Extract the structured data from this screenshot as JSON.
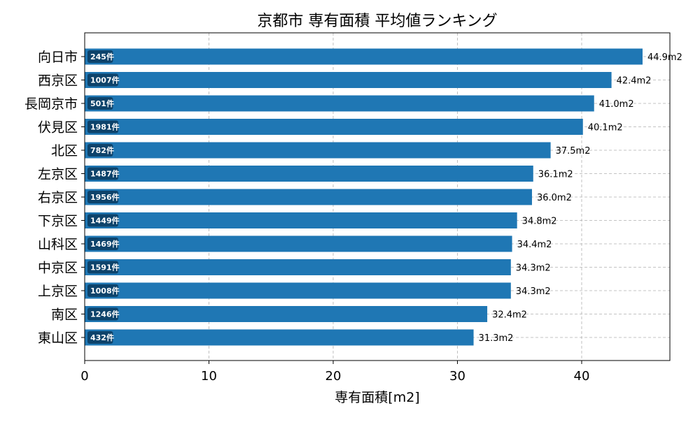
{
  "chart_data": {
    "type": "bar",
    "orientation": "horizontal",
    "title": "京都市 専有面積 平均値ランキング",
    "xlabel": "専有面積[m2]",
    "ylabel": "",
    "xlim": [
      0,
      47.1
    ],
    "xticks": [
      0,
      10,
      20,
      30,
      40
    ],
    "grid": true,
    "bar_color": "#1f77b4",
    "badge_color": "#0b3a5e",
    "categories": [
      "向日市",
      "西京区",
      "長岡京市",
      "伏見区",
      "北区",
      "左京区",
      "右京区",
      "下京区",
      "山科区",
      "中京区",
      "上京区",
      "南区",
      "東山区"
    ],
    "values": [
      44.9,
      42.4,
      41.0,
      40.1,
      37.5,
      36.1,
      36.0,
      34.8,
      34.4,
      34.3,
      34.3,
      32.4,
      31.3
    ],
    "value_labels": [
      "44.9m2",
      "42.4m2",
      "41.0m2",
      "40.1m2",
      "37.5m2",
      "36.1m2",
      "36.0m2",
      "34.8m2",
      "34.4m2",
      "34.3m2",
      "34.3m2",
      "32.4m2",
      "31.3m2"
    ],
    "counts": [
      "245件",
      "1007件",
      "501件",
      "1981件",
      "782件",
      "1487件",
      "1956件",
      "1449件",
      "1469件",
      "1591件",
      "1008件",
      "1246件",
      "432件"
    ]
  }
}
